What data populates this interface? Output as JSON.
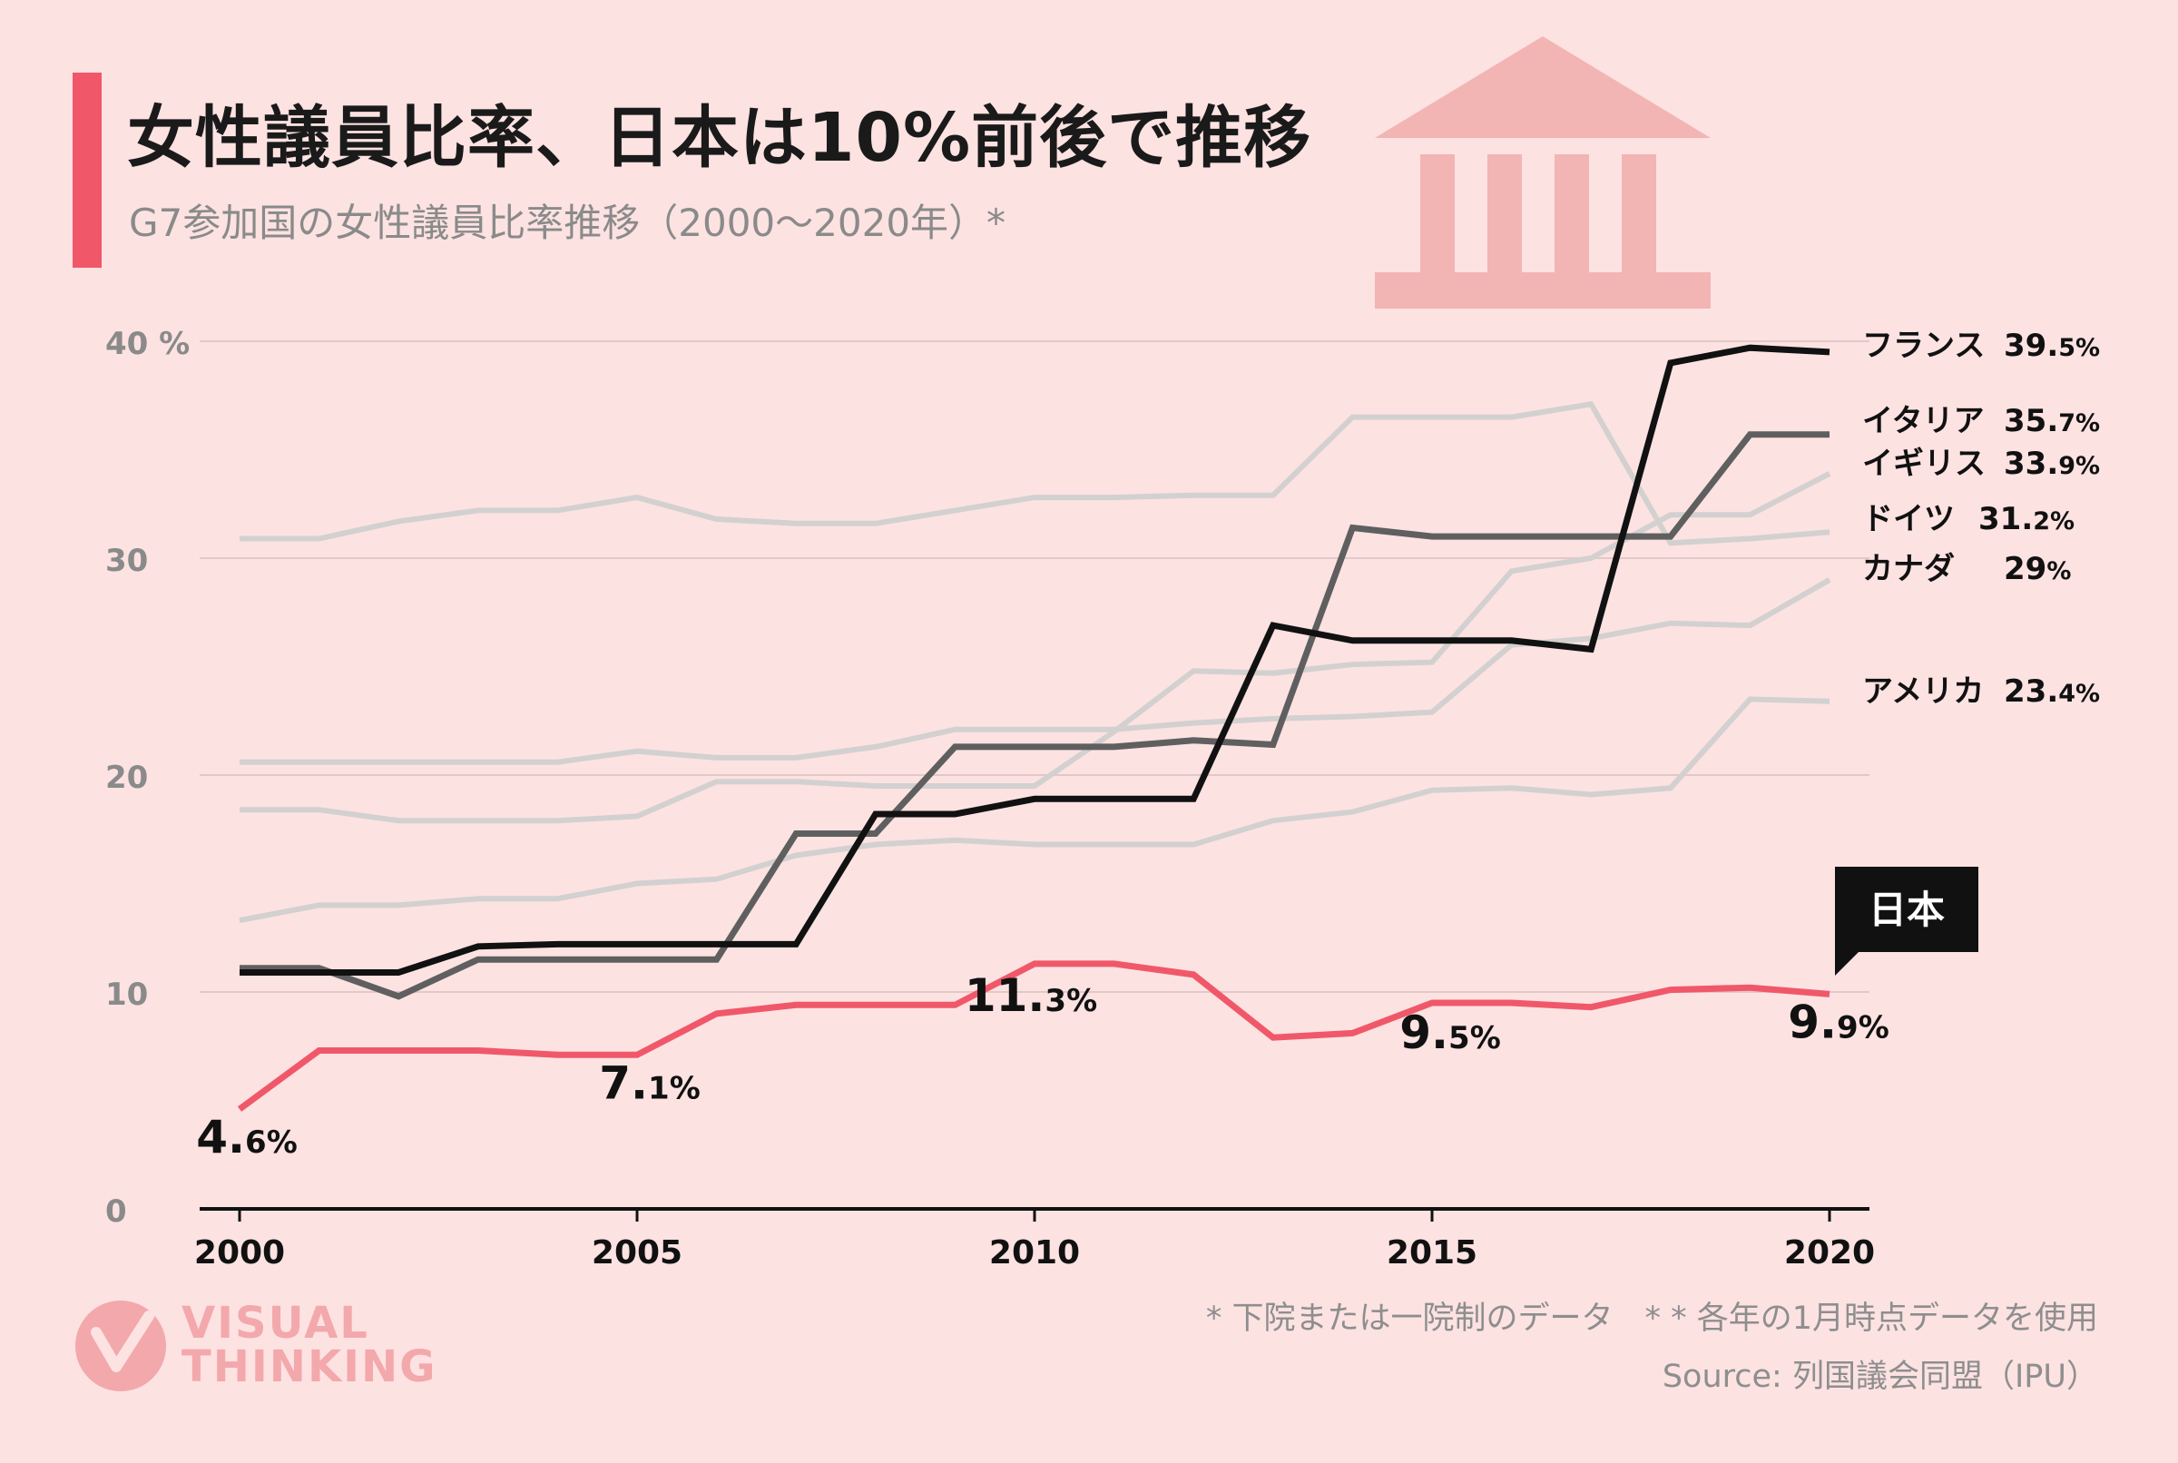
{
  "header": {
    "title": "女性議員比率、日本は10%前後で推移",
    "subtitle": "G7参加国の女性議員比率推移（2000〜2020年）*"
  },
  "footnotes": {
    "note1": "* 下院または一院制のデータ　* * 各年の1月時点データを使用",
    "source": "Source: 列国議会同盟（IPU）"
  },
  "logo": {
    "line1": "VISUAL",
    "line2": "THINKING"
  },
  "colors": {
    "background": "#fde2e2",
    "accent": "#f0586a",
    "japan": "#f0586a",
    "france": "#111111",
    "italy": "#5f5f5f",
    "others": "#d3d0d0",
    "building": "#f3b4b4"
  },
  "icons": {
    "building": "parliament-building-icon"
  },
  "chart_data": {
    "type": "line",
    "title": "女性議員比率、日本は10%前後で推移",
    "subtitle": "G7参加国の女性議員比率推移（2000〜2020年）*",
    "xlabel": "",
    "ylabel": "",
    "xlim": [
      2000,
      2020
    ],
    "ylim": [
      0,
      40
    ],
    "grid": true,
    "x": [
      2000,
      2001,
      2002,
      2003,
      2004,
      2005,
      2006,
      2007,
      2008,
      2009,
      2010,
      2011,
      2012,
      2013,
      2014,
      2015,
      2016,
      2017,
      2018,
      2019,
      2020
    ],
    "x_ticks": [
      "2000",
      "2005",
      "2010",
      "2015",
      "2020"
    ],
    "x_tick_values": [
      2000,
      2005,
      2010,
      2015,
      2020
    ],
    "y_ticks": [
      "40 %",
      "30",
      "20",
      "10",
      "0"
    ],
    "y_tick_values": [
      40,
      30,
      20,
      10,
      0
    ],
    "series": [
      {
        "name": "カナダ",
        "label": "29%",
        "style": "other",
        "values": [
          20.6,
          20.6,
          20.6,
          20.6,
          20.6,
          21.1,
          20.8,
          20.8,
          21.3,
          22.1,
          22.1,
          22.1,
          22.4,
          22.6,
          22.7,
          22.9,
          26.0,
          26.3,
          27.0,
          26.9,
          29.0
        ]
      },
      {
        "name": "ドイツ",
        "label": "31.2%",
        "style": "other",
        "values": [
          30.9,
          30.9,
          31.7,
          32.2,
          32.2,
          32.8,
          31.8,
          31.6,
          31.6,
          32.2,
          32.8,
          32.8,
          32.9,
          32.9,
          36.5,
          36.5,
          36.5,
          37.1,
          30.7,
          30.9,
          31.2
        ]
      },
      {
        "name": "イギリス",
        "label": "33.9%",
        "style": "other",
        "values": [
          18.4,
          18.4,
          17.9,
          17.9,
          17.9,
          18.1,
          19.7,
          19.7,
          19.5,
          19.5,
          19.5,
          22.0,
          24.8,
          24.7,
          25.1,
          25.2,
          29.4,
          30.0,
          32.0,
          32.0,
          33.9
        ]
      },
      {
        "name": "アメリカ",
        "label": "23.4%",
        "style": "other",
        "values": [
          13.3,
          14.0,
          14.0,
          14.3,
          14.3,
          15.0,
          15.2,
          16.3,
          16.8,
          17.0,
          16.8,
          16.8,
          16.8,
          17.9,
          18.3,
          19.3,
          19.4,
          19.1,
          19.4,
          23.5,
          23.4
        ]
      },
      {
        "name": "イタリア",
        "label": "35.7%",
        "style": "italy",
        "values": [
          11.1,
          11.1,
          9.8,
          11.5,
          11.5,
          11.5,
          11.5,
          17.3,
          17.3,
          21.3,
          21.3,
          21.3,
          21.6,
          21.4,
          31.4,
          31.0,
          31.0,
          31.0,
          31.0,
          35.7,
          35.7
        ]
      },
      {
        "name": "フランス",
        "label": "39.5%",
        "style": "france",
        "values": [
          10.9,
          10.9,
          10.9,
          12.1,
          12.2,
          12.2,
          12.2,
          12.2,
          18.2,
          18.2,
          18.9,
          18.9,
          18.9,
          26.9,
          26.2,
          26.2,
          26.2,
          25.8,
          39.0,
          39.7,
          39.5
        ]
      },
      {
        "name": "日本",
        "label": "9.9%",
        "style": "japan",
        "values": [
          4.6,
          7.3,
          7.3,
          7.3,
          7.1,
          7.1,
          9.0,
          9.4,
          9.4,
          9.4,
          11.3,
          11.3,
          10.8,
          7.9,
          8.1,
          9.5,
          9.5,
          9.3,
          10.1,
          10.2,
          9.9
        ]
      }
    ],
    "japan_annotations": [
      {
        "year": 2000,
        "big": "4.",
        "small": "6%"
      },
      {
        "year": 2005,
        "big": "7.",
        "small": "1%"
      },
      {
        "year": 2010,
        "big": "11.",
        "small": "3%"
      },
      {
        "year": 2015,
        "big": "9.",
        "small": "5%"
      },
      {
        "year": 2020,
        "big": "9.",
        "small": "9%"
      }
    ],
    "legend": [
      {
        "name": "フランス",
        "big": "39.",
        "small": "5%"
      },
      {
        "name": "イタリア",
        "big": "35.",
        "small": "7%"
      },
      {
        "name": "イギリス",
        "big": "33.",
        "small": "9%"
      },
      {
        "name": "ドイツ",
        "big": "31.",
        "small": "2%"
      },
      {
        "name": "カナダ",
        "big": "29",
        "small": "%"
      },
      {
        "name": "アメリカ",
        "big": "23.",
        "small": "4%"
      }
    ],
    "callout": "日本"
  }
}
